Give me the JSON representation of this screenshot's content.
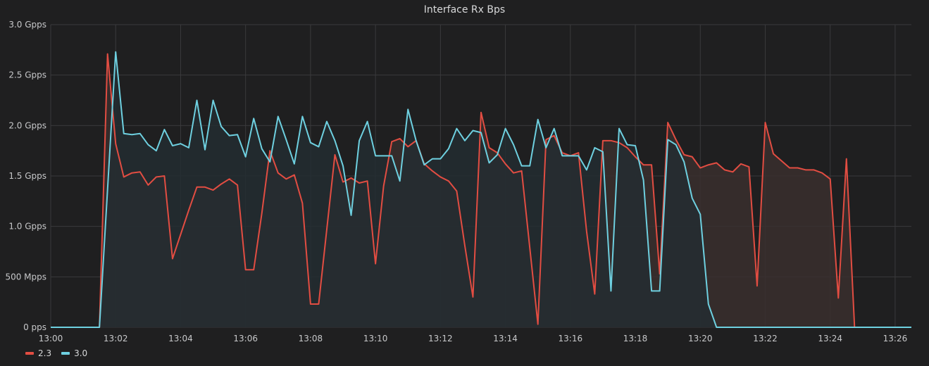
{
  "panel": {
    "title": "Interface Rx Bps"
  },
  "colors": {
    "background": "#1f1f20",
    "grid": "#3a3a3c",
    "text": "#c7c8ca"
  },
  "chart_data": {
    "type": "area",
    "title": "Interface Rx Bps",
    "xlabel": "",
    "ylabel": "",
    "x_unit": "minutes past 13:00",
    "xlim": [
      0,
      26.5
    ],
    "ylim": [
      0,
      3.0
    ],
    "grid": true,
    "legend_position": "bottom-left",
    "y_ticks": [
      {
        "value": 0,
        "label": "0 pps"
      },
      {
        "value": 0.5,
        "label": "500 Mpps"
      },
      {
        "value": 1.0,
        "label": "1.0 Gpps"
      },
      {
        "value": 1.5,
        "label": "1.5 Gpps"
      },
      {
        "value": 2.0,
        "label": "2.0 Gpps"
      },
      {
        "value": 2.5,
        "label": "2.5 Gpps"
      },
      {
        "value": 3.0,
        "label": "3.0 Gpps"
      }
    ],
    "x_ticks": [
      {
        "value": 0,
        "label": "13:00"
      },
      {
        "value": 2,
        "label": "13:02"
      },
      {
        "value": 4,
        "label": "13:04"
      },
      {
        "value": 6,
        "label": "13:06"
      },
      {
        "value": 8,
        "label": "13:08"
      },
      {
        "value": 10,
        "label": "13:10"
      },
      {
        "value": 12,
        "label": "13:12"
      },
      {
        "value": 14,
        "label": "13:14"
      },
      {
        "value": 16,
        "label": "13:16"
      },
      {
        "value": 18,
        "label": "13:18"
      },
      {
        "value": 20,
        "label": "13:20"
      },
      {
        "value": 22,
        "label": "13:22"
      },
      {
        "value": 24,
        "label": "13:24"
      },
      {
        "value": 26,
        "label": "13:26"
      }
    ],
    "series": [
      {
        "name": "2.3",
        "color": "#e24d42",
        "fill": "#3a2f2e",
        "points": [
          [
            0,
            0
          ],
          [
            1.5,
            0
          ],
          [
            1.75,
            2.71
          ],
          [
            2.0,
            1.82
          ],
          [
            2.25,
            1.49
          ],
          [
            2.5,
            1.53
          ],
          [
            2.75,
            1.54
          ],
          [
            3.0,
            1.41
          ],
          [
            3.25,
            1.49
          ],
          [
            3.5,
            1.5
          ],
          [
            3.75,
            0.68
          ],
          [
            4.0,
            0.92
          ],
          [
            4.25,
            1.16
          ],
          [
            4.5,
            1.39
          ],
          [
            4.75,
            1.39
          ],
          [
            5.0,
            1.36
          ],
          [
            5.25,
            1.42
          ],
          [
            5.5,
            1.47
          ],
          [
            5.75,
            1.41
          ],
          [
            6.0,
            0.57
          ],
          [
            6.25,
            0.57
          ],
          [
            6.5,
            1.13
          ],
          [
            6.75,
            1.75
          ],
          [
            7.0,
            1.53
          ],
          [
            7.25,
            1.47
          ],
          [
            7.5,
            1.51
          ],
          [
            7.75,
            1.23
          ],
          [
            8.0,
            0.23
          ],
          [
            8.25,
            0.23
          ],
          [
            8.5,
            0.97
          ],
          [
            8.75,
            1.71
          ],
          [
            9.0,
            1.44
          ],
          [
            9.25,
            1.48
          ],
          [
            9.5,
            1.43
          ],
          [
            9.75,
            1.45
          ],
          [
            10.0,
            0.63
          ],
          [
            10.25,
            1.4
          ],
          [
            10.5,
            1.84
          ],
          [
            10.75,
            1.87
          ],
          [
            11.0,
            1.79
          ],
          [
            11.25,
            1.85
          ],
          [
            11.5,
            1.62
          ],
          [
            11.75,
            1.55
          ],
          [
            12.0,
            1.49
          ],
          [
            12.25,
            1.45
          ],
          [
            12.5,
            1.35
          ],
          [
            12.75,
            0.81
          ],
          [
            13.0,
            0.3
          ],
          [
            13.25,
            2.13
          ],
          [
            13.5,
            1.78
          ],
          [
            13.75,
            1.73
          ],
          [
            14.0,
            1.62
          ],
          [
            14.25,
            1.53
          ],
          [
            14.5,
            1.55
          ],
          [
            14.75,
            0.79
          ],
          [
            15.0,
            0.03
          ],
          [
            15.25,
            1.86
          ],
          [
            15.5,
            1.9
          ],
          [
            15.75,
            1.73
          ],
          [
            16.0,
            1.7
          ],
          [
            16.25,
            1.73
          ],
          [
            16.5,
            0.95
          ],
          [
            16.75,
            0.33
          ],
          [
            17.0,
            1.85
          ],
          [
            17.25,
            1.85
          ],
          [
            17.5,
            1.83
          ],
          [
            17.75,
            1.78
          ],
          [
            18.0,
            1.69
          ],
          [
            18.25,
            1.61
          ],
          [
            18.5,
            1.61
          ],
          [
            18.75,
            0.53
          ],
          [
            19.0,
            2.03
          ],
          [
            19.25,
            1.86
          ],
          [
            19.5,
            1.71
          ],
          [
            19.75,
            1.69
          ],
          [
            20.0,
            1.58
          ],
          [
            20.25,
            1.61
          ],
          [
            20.5,
            1.63
          ],
          [
            20.75,
            1.56
          ],
          [
            21.0,
            1.54
          ],
          [
            21.25,
            1.62
          ],
          [
            21.5,
            1.59
          ],
          [
            21.75,
            0.41
          ],
          [
            22.0,
            2.03
          ],
          [
            22.25,
            1.72
          ],
          [
            22.5,
            1.65
          ],
          [
            22.75,
            1.58
          ],
          [
            23.0,
            1.58
          ],
          [
            23.25,
            1.56
          ],
          [
            23.5,
            1.56
          ],
          [
            23.75,
            1.53
          ],
          [
            24.0,
            1.47
          ],
          [
            24.25,
            0.29
          ],
          [
            24.5,
            1.67
          ],
          [
            24.75,
            0
          ],
          [
            26.5,
            0
          ]
        ]
      },
      {
        "name": "3.0",
        "color": "#6ed0e0",
        "fill": "#232d31",
        "points": [
          [
            0,
            0
          ],
          [
            1.5,
            0
          ],
          [
            2.0,
            2.73
          ],
          [
            2.25,
            1.92
          ],
          [
            2.5,
            1.91
          ],
          [
            2.75,
            1.92
          ],
          [
            3.0,
            1.81
          ],
          [
            3.25,
            1.75
          ],
          [
            3.5,
            1.96
          ],
          [
            3.75,
            1.8
          ],
          [
            4.0,
            1.82
          ],
          [
            4.25,
            1.78
          ],
          [
            4.5,
            2.25
          ],
          [
            4.75,
            1.76
          ],
          [
            5.0,
            2.25
          ],
          [
            5.25,
            1.99
          ],
          [
            5.5,
            1.9
          ],
          [
            5.75,
            1.91
          ],
          [
            6.0,
            1.69
          ],
          [
            6.25,
            2.07
          ],
          [
            6.5,
            1.77
          ],
          [
            6.75,
            1.64
          ],
          [
            7.0,
            2.09
          ],
          [
            7.25,
            1.86
          ],
          [
            7.5,
            1.62
          ],
          [
            7.75,
            2.09
          ],
          [
            8.0,
            1.83
          ],
          [
            8.25,
            1.79
          ],
          [
            8.5,
            2.04
          ],
          [
            8.75,
            1.85
          ],
          [
            9.0,
            1.6
          ],
          [
            9.25,
            1.11
          ],
          [
            9.5,
            1.85
          ],
          [
            9.75,
            2.04
          ],
          [
            10.0,
            1.7
          ],
          [
            10.25,
            1.7
          ],
          [
            10.5,
            1.7
          ],
          [
            10.75,
            1.45
          ],
          [
            11.0,
            2.16
          ],
          [
            11.25,
            1.85
          ],
          [
            11.5,
            1.61
          ],
          [
            11.75,
            1.67
          ],
          [
            12.0,
            1.67
          ],
          [
            12.25,
            1.77
          ],
          [
            12.5,
            1.97
          ],
          [
            12.75,
            1.85
          ],
          [
            13.0,
            1.95
          ],
          [
            13.25,
            1.93
          ],
          [
            13.5,
            1.63
          ],
          [
            13.75,
            1.71
          ],
          [
            14.0,
            1.97
          ],
          [
            14.25,
            1.81
          ],
          [
            14.5,
            1.6
          ],
          [
            14.75,
            1.6
          ],
          [
            15.0,
            2.06
          ],
          [
            15.25,
            1.78
          ],
          [
            15.5,
            1.97
          ],
          [
            15.75,
            1.7
          ],
          [
            16.0,
            1.7
          ],
          [
            16.25,
            1.7
          ],
          [
            16.5,
            1.56
          ],
          [
            16.75,
            1.78
          ],
          [
            17.0,
            1.74
          ],
          [
            17.25,
            0.36
          ],
          [
            17.5,
            1.97
          ],
          [
            17.75,
            1.81
          ],
          [
            18.0,
            1.8
          ],
          [
            18.25,
            1.46
          ],
          [
            18.5,
            0.36
          ],
          [
            18.75,
            0.36
          ],
          [
            19.0,
            1.86
          ],
          [
            19.25,
            1.81
          ],
          [
            19.5,
            1.64
          ],
          [
            19.75,
            1.28
          ],
          [
            20.0,
            1.12
          ],
          [
            20.25,
            0.23
          ],
          [
            20.5,
            0
          ],
          [
            26.5,
            0
          ]
        ]
      }
    ]
  }
}
